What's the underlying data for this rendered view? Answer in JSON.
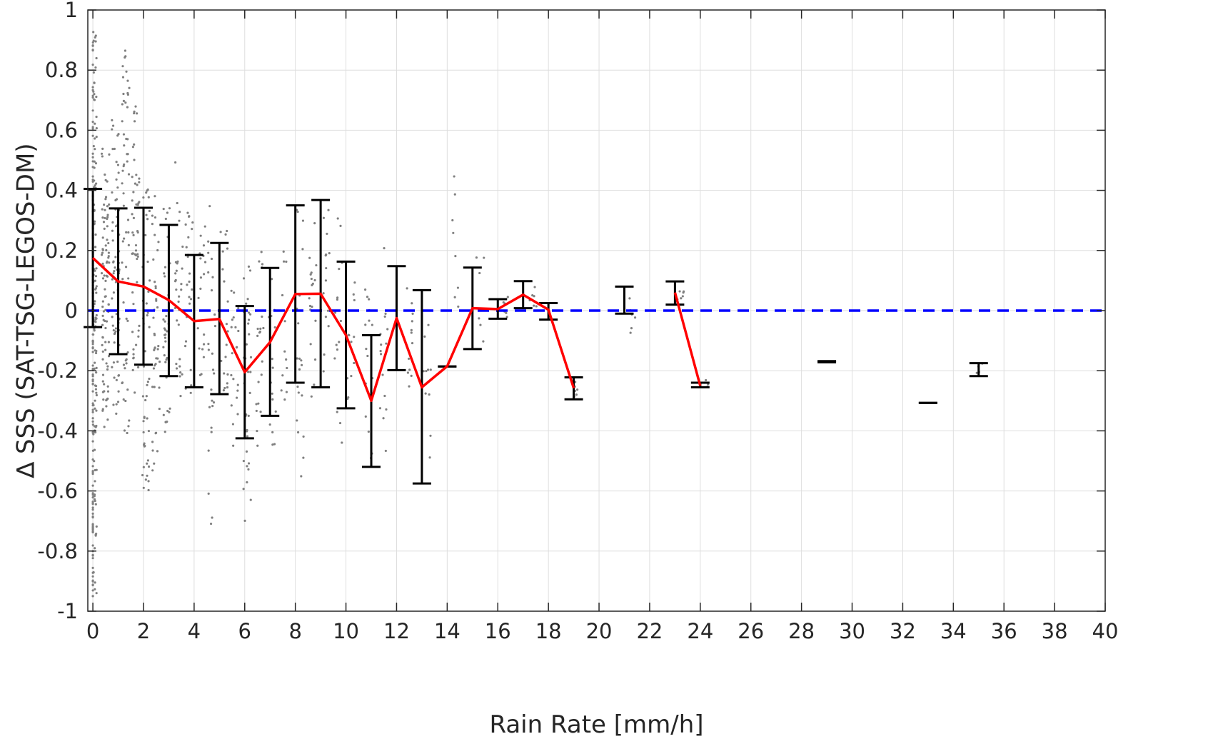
{
  "chart_data": {
    "type": "scatter",
    "xlabel": "Rain Rate [mm/h]",
    "ylabel": "∆ SSS (SAT-TSG-LEGOS-DM)",
    "xlim": [
      -0.2,
      40
    ],
    "ylim": [
      -1,
      1
    ],
    "x_ticks": [
      0,
      2,
      4,
      6,
      8,
      10,
      12,
      14,
      16,
      18,
      20,
      22,
      24,
      26,
      28,
      30,
      32,
      34,
      36,
      38,
      40
    ],
    "x_tick_labels": [
      "0",
      "2",
      "4",
      "6",
      "8",
      "10",
      "12",
      "14",
      "16",
      "18",
      "20",
      "22",
      "24",
      "26",
      "28",
      "30",
      "32",
      "34",
      "36",
      "38",
      "40"
    ],
    "y_ticks": [
      1,
      0.8,
      0.6,
      0.4,
      0.2,
      0,
      -0.2,
      -0.4,
      -0.6,
      -0.8,
      -1
    ],
    "y_tick_labels": [
      "1",
      "0.8",
      "0.6",
      "0.4",
      "0.2",
      "0",
      "-0.2",
      "-0.4",
      "-0.6",
      "-0.8",
      "-1"
    ],
    "grid": true,
    "reference_line": {
      "y": 0,
      "style": "dashed",
      "color": "#0000ff"
    },
    "colors": {
      "scatter": "#808080",
      "mean_line": "#ff0000",
      "error_bars": "#000000",
      "zero_line": "#0000ff"
    },
    "mean_line_segments": [
      [
        [
          0,
          0.175
        ],
        [
          1,
          0.097
        ],
        [
          2,
          0.08
        ],
        [
          3,
          0.035
        ],
        [
          4,
          -0.035
        ],
        [
          5,
          -0.028
        ],
        [
          6,
          -0.205
        ],
        [
          7,
          -0.105
        ],
        [
          8,
          0.055
        ],
        [
          9,
          0.056
        ],
        [
          10,
          -0.082
        ],
        [
          11,
          -0.3
        ],
        [
          12,
          -0.025
        ],
        [
          13,
          -0.255
        ],
        [
          14,
          -0.185
        ],
        [
          15,
          0.008
        ],
        [
          16,
          0.005
        ],
        [
          17,
          0.053
        ],
        [
          18,
          0.003
        ],
        [
          19,
          -0.258
        ]
      ],
      [
        [
          23,
          0.06
        ],
        [
          24,
          -0.25
        ]
      ]
    ],
    "error_bars": [
      {
        "x": 0,
        "low": -0.055,
        "high": 0.405
      },
      {
        "x": 1,
        "low": -0.145,
        "high": 0.34
      },
      {
        "x": 2,
        "low": -0.18,
        "high": 0.342
      },
      {
        "x": 3,
        "low": -0.218,
        "high": 0.285
      },
      {
        "x": 4,
        "low": -0.255,
        "high": 0.185
      },
      {
        "x": 5,
        "low": -0.278,
        "high": 0.225
      },
      {
        "x": 6,
        "low": -0.425,
        "high": 0.015
      },
      {
        "x": 7,
        "low": -0.35,
        "high": 0.142
      },
      {
        "x": 8,
        "low": -0.24,
        "high": 0.35
      },
      {
        "x": 9,
        "low": -0.255,
        "high": 0.368
      },
      {
        "x": 10,
        "low": -0.325,
        "high": 0.163
      },
      {
        "x": 11,
        "low": -0.52,
        "high": -0.082
      },
      {
        "x": 12,
        "low": -0.198,
        "high": 0.148
      },
      {
        "x": 13,
        "low": -0.575,
        "high": 0.068
      },
      {
        "x": 14,
        "low": -0.186,
        "high": -0.186
      },
      {
        "x": 15,
        "low": -0.128,
        "high": 0.143
      },
      {
        "x": 16,
        "low": -0.027,
        "high": 0.038
      },
      {
        "x": 17,
        "low": 0.008,
        "high": 0.098
      },
      {
        "x": 18,
        "low": -0.03,
        "high": 0.025
      },
      {
        "x": 19,
        "low": -0.295,
        "high": -0.222
      },
      {
        "x": 21,
        "low": -0.01,
        "high": 0.08
      },
      {
        "x": 23,
        "low": 0.02,
        "high": 0.097
      },
      {
        "x": 24,
        "low": -0.255,
        "high": -0.24
      },
      {
        "x": 29,
        "low": -0.172,
        "high": -0.168
      },
      {
        "x": 33,
        "low": -0.307,
        "high": -0.307
      },
      {
        "x": 35,
        "low": -0.218,
        "high": -0.175
      }
    ],
    "scatter_clusters": [
      {
        "x": 0,
        "y_min": -0.95,
        "y_max": 1.0,
        "count": 260
      },
      {
        "x": 0.5,
        "y_min": -0.42,
        "y_max": 0.55,
        "count": 90
      },
      {
        "x": 0.9,
        "y_min": -0.35,
        "y_max": 0.65,
        "count": 70
      },
      {
        "x": 1.3,
        "y_min": -0.42,
        "y_max": 0.88,
        "count": 60
      },
      {
        "x": 1.7,
        "y_min": -0.3,
        "y_max": 0.7,
        "count": 50
      },
      {
        "x": 2.1,
        "y_min": -0.6,
        "y_max": 0.42,
        "count": 50
      },
      {
        "x": 2.5,
        "y_min": -0.55,
        "y_max": 0.4,
        "count": 40
      },
      {
        "x": 2.9,
        "y_min": -0.5,
        "y_max": 0.35,
        "count": 35
      },
      {
        "x": 3.4,
        "y_min": -0.35,
        "y_max": 0.5,
        "count": 30
      },
      {
        "x": 3.8,
        "y_min": -0.3,
        "y_max": 0.35,
        "count": 25
      },
      {
        "x": 4.3,
        "y_min": -0.25,
        "y_max": 0.35,
        "count": 20
      },
      {
        "x": 4.7,
        "y_min": -0.74,
        "y_max": 0.35,
        "count": 25
      },
      {
        "x": 5.2,
        "y_min": -0.35,
        "y_max": 0.32,
        "count": 20
      },
      {
        "x": 5.6,
        "y_min": -0.45,
        "y_max": 0.2,
        "count": 20
      },
      {
        "x": 6.1,
        "y_min": -0.75,
        "y_max": 0.2,
        "count": 35
      },
      {
        "x": 6.6,
        "y_min": -0.47,
        "y_max": 0.35,
        "count": 20
      },
      {
        "x": 7.1,
        "y_min": -0.45,
        "y_max": 0.15,
        "count": 15
      },
      {
        "x": 7.6,
        "y_min": -0.3,
        "y_max": 0.2,
        "count": 12
      },
      {
        "x": 8.2,
        "y_min": -0.56,
        "y_max": 0.35,
        "count": 20
      },
      {
        "x": 8.7,
        "y_min": -0.3,
        "y_max": 0.3,
        "count": 18
      },
      {
        "x": 9.2,
        "y_min": -0.25,
        "y_max": 0.35,
        "count": 15
      },
      {
        "x": 9.7,
        "y_min": -0.48,
        "y_max": 0.34,
        "count": 15
      },
      {
        "x": 10.2,
        "y_min": -0.32,
        "y_max": 0.15,
        "count": 12
      },
      {
        "x": 10.9,
        "y_min": -0.5,
        "y_max": 0.1,
        "count": 15
      },
      {
        "x": 11.5,
        "y_min": -0.48,
        "y_max": 0.21,
        "count": 15
      },
      {
        "x": 12.5,
        "y_min": -0.35,
        "y_max": 0.2,
        "count": 12
      },
      {
        "x": 13.2,
        "y_min": -0.5,
        "y_max": 0.1,
        "count": 10
      },
      {
        "x": 14.3,
        "y_min": -0.2,
        "y_max": 0.46,
        "count": 8
      },
      {
        "x": 15.3,
        "y_min": -0.15,
        "y_max": 0.39,
        "count": 6
      },
      {
        "x": 16.3,
        "y_min": -0.03,
        "y_max": 0.05,
        "count": 6
      },
      {
        "x": 17.4,
        "y_min": 0.0,
        "y_max": 0.09,
        "count": 6
      },
      {
        "x": 19.0,
        "y_min": -0.31,
        "y_max": -0.22,
        "count": 6
      },
      {
        "x": 21.3,
        "y_min": -0.09,
        "y_max": 0.09,
        "count": 6
      },
      {
        "x": 23.2,
        "y_min": 0.03,
        "y_max": 0.09,
        "count": 6
      },
      {
        "x": 24.3,
        "y_min": -0.26,
        "y_max": -0.23,
        "count": 4
      },
      {
        "x": 35.0,
        "y_min": -0.25,
        "y_max": -0.17,
        "count": 4
      }
    ]
  }
}
